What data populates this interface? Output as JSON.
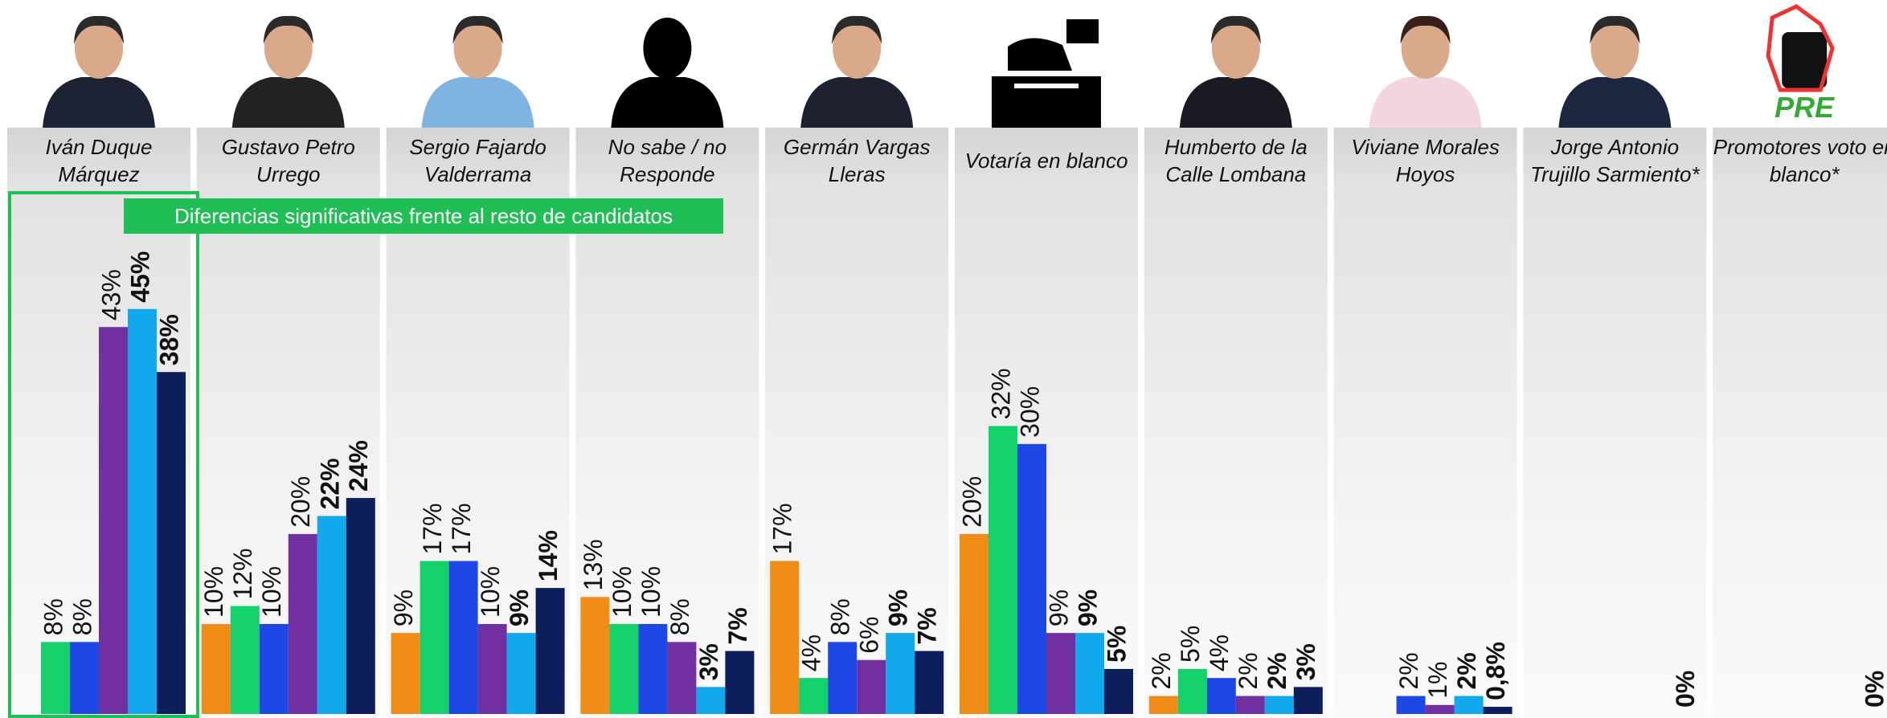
{
  "chart_data": {
    "type": "bar",
    "annotation": "Diferencias significativas frente al resto de candidatos",
    "categories": [
      "Iván Duque Márquez",
      "Gustavo Petro Urrego",
      "Sergio Fajardo Valderrama",
      "No sabe / no Responde",
      "Germán Vargas Lleras",
      "Votaría en blanco",
      "Humberto de la Calle Lombana",
      "Viviane Morales Hoyos",
      "Jorge Antonio Trujillo Sarmiento*",
      "Promotores voto en blanco*"
    ],
    "ylim": [
      0,
      78
    ],
    "series": [
      {
        "color": "#f28c18",
        "bold": false,
        "values": [
          null,
          10,
          9,
          13,
          17,
          20,
          2,
          null,
          null,
          null
        ],
        "value_labels": [
          null,
          "10%",
          "9%",
          "13%",
          "17%",
          "20%",
          "2%",
          null,
          null,
          null
        ]
      },
      {
        "color": "#15d16a",
        "bold": false,
        "values": [
          8,
          12,
          17,
          10,
          4,
          32,
          5,
          null,
          null,
          null
        ],
        "value_labels": [
          "8%",
          "12%",
          "17%",
          "10%",
          "4%",
          "32%",
          "5%",
          null,
          null,
          null
        ]
      },
      {
        "color": "#1e48e6",
        "bold": false,
        "values": [
          8,
          10,
          17,
          10,
          8,
          30,
          4,
          2,
          null,
          null
        ],
        "value_labels": [
          "8%",
          "10%",
          "17%",
          "10%",
          "8%",
          "30%",
          "4%",
          "2%",
          null,
          null
        ]
      },
      {
        "color": "#7030a0",
        "bold": false,
        "values": [
          43,
          20,
          10,
          8,
          6,
          9,
          2,
          1,
          null,
          null
        ],
        "value_labels": [
          "43%",
          "20%",
          "10%",
          "8%",
          "6%",
          "9%",
          "2%",
          "1%",
          null,
          null
        ]
      },
      {
        "color": "#12a9ec",
        "bold": true,
        "values": [
          45,
          22,
          9,
          3,
          9,
          9,
          2,
          2,
          null,
          null
        ],
        "value_labels": [
          "45%",
          "22%",
          "9%",
          "3%",
          "9%",
          "9%",
          "2%",
          "2%",
          null,
          null
        ]
      },
      {
        "color": "#0c1f5c",
        "bold": true,
        "values": [
          38,
          24,
          14,
          7,
          7,
          5,
          3,
          0.8,
          0,
          0
        ],
        "value_labels": [
          "38%",
          "24%",
          "14%",
          "7%",
          "7%",
          "5%",
          "3%",
          "0,8%",
          "0%",
          "0%"
        ]
      }
    ]
  }
}
